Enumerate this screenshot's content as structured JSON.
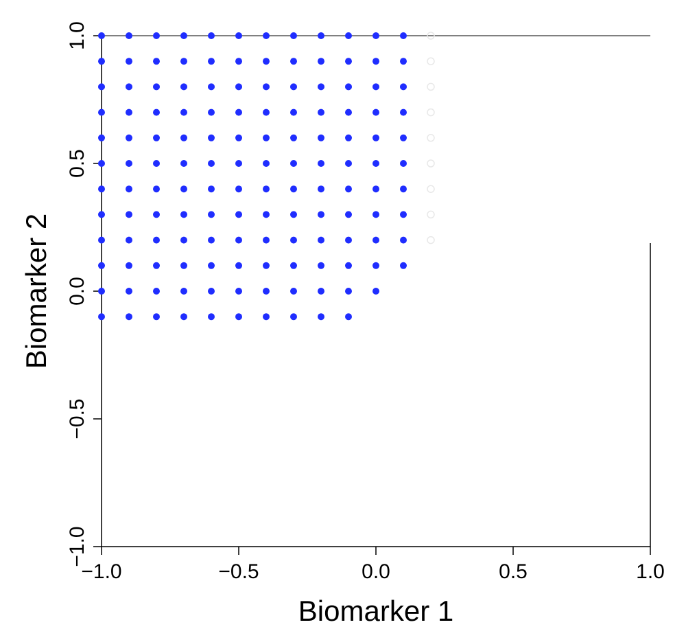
{
  "chart_data": {
    "type": "scatter",
    "title": "",
    "xlabel": "Biomarker 1",
    "ylabel": "Biomarker 2",
    "xlim": [
      -1.0,
      1.0
    ],
    "ylim": [
      -1.0,
      1.0
    ],
    "x_ticks": [
      -1.0,
      -0.5,
      0.0,
      0.5,
      1.0
    ],
    "y_ticks": [
      -1.0,
      -0.5,
      0.0,
      0.5,
      1.0
    ],
    "x_tick_labels": [
      "−1.0",
      "−0.5",
      "0.0",
      "0.5",
      "1.0"
    ],
    "y_tick_labels": [
      "−1.0",
      "−0.5",
      "0.0",
      "0.5",
      "1.0"
    ],
    "grid": false,
    "legend": "none",
    "series": [
      {
        "marker": "filled-circle",
        "color": "#1f2dff",
        "points": [
          [
            -1.0,
            1.0
          ],
          [
            -0.9,
            1.0
          ],
          [
            -0.8,
            1.0
          ],
          [
            -0.7,
            1.0
          ],
          [
            -0.6,
            1.0
          ],
          [
            -0.5,
            1.0
          ],
          [
            -0.4,
            1.0
          ],
          [
            -0.3,
            1.0
          ],
          [
            -0.2,
            1.0
          ],
          [
            -0.1,
            1.0
          ],
          [
            0.0,
            1.0
          ],
          [
            0.1,
            1.0
          ],
          [
            -1.0,
            0.9
          ],
          [
            -0.9,
            0.9
          ],
          [
            -0.8,
            0.9
          ],
          [
            -0.7,
            0.9
          ],
          [
            -0.6,
            0.9
          ],
          [
            -0.5,
            0.9
          ],
          [
            -0.4,
            0.9
          ],
          [
            -0.3,
            0.9
          ],
          [
            -0.2,
            0.9
          ],
          [
            -0.1,
            0.9
          ],
          [
            0.0,
            0.9
          ],
          [
            0.1,
            0.9
          ],
          [
            -1.0,
            0.8
          ],
          [
            -0.9,
            0.8
          ],
          [
            -0.8,
            0.8
          ],
          [
            -0.7,
            0.8
          ],
          [
            -0.6,
            0.8
          ],
          [
            -0.5,
            0.8
          ],
          [
            -0.4,
            0.8
          ],
          [
            -0.3,
            0.8
          ],
          [
            -0.2,
            0.8
          ],
          [
            -0.1,
            0.8
          ],
          [
            0.0,
            0.8
          ],
          [
            0.1,
            0.8
          ],
          [
            -1.0,
            0.7
          ],
          [
            -0.9,
            0.7
          ],
          [
            -0.8,
            0.7
          ],
          [
            -0.7,
            0.7
          ],
          [
            -0.6,
            0.7
          ],
          [
            -0.5,
            0.7
          ],
          [
            -0.4,
            0.7
          ],
          [
            -0.3,
            0.7
          ],
          [
            -0.2,
            0.7
          ],
          [
            -0.1,
            0.7
          ],
          [
            0.0,
            0.7
          ],
          [
            0.1,
            0.7
          ],
          [
            -1.0,
            0.6
          ],
          [
            -0.9,
            0.6
          ],
          [
            -0.8,
            0.6
          ],
          [
            -0.7,
            0.6
          ],
          [
            -0.6,
            0.6
          ],
          [
            -0.5,
            0.6
          ],
          [
            -0.4,
            0.6
          ],
          [
            -0.3,
            0.6
          ],
          [
            -0.2,
            0.6
          ],
          [
            -0.1,
            0.6
          ],
          [
            0.0,
            0.6
          ],
          [
            0.1,
            0.6
          ],
          [
            -1.0,
            0.5
          ],
          [
            -0.9,
            0.5
          ],
          [
            -0.8,
            0.5
          ],
          [
            -0.7,
            0.5
          ],
          [
            -0.6,
            0.5
          ],
          [
            -0.5,
            0.5
          ],
          [
            -0.4,
            0.5
          ],
          [
            -0.3,
            0.5
          ],
          [
            -0.2,
            0.5
          ],
          [
            -0.1,
            0.5
          ],
          [
            0.0,
            0.5
          ],
          [
            0.1,
            0.5
          ],
          [
            -1.0,
            0.4
          ],
          [
            -0.9,
            0.4
          ],
          [
            -0.8,
            0.4
          ],
          [
            -0.7,
            0.4
          ],
          [
            -0.6,
            0.4
          ],
          [
            -0.5,
            0.4
          ],
          [
            -0.4,
            0.4
          ],
          [
            -0.3,
            0.4
          ],
          [
            -0.2,
            0.4
          ],
          [
            -0.1,
            0.4
          ],
          [
            0.0,
            0.4
          ],
          [
            0.1,
            0.4
          ],
          [
            -1.0,
            0.3
          ],
          [
            -0.9,
            0.3
          ],
          [
            -0.8,
            0.3
          ],
          [
            -0.7,
            0.3
          ],
          [
            -0.6,
            0.3
          ],
          [
            -0.5,
            0.3
          ],
          [
            -0.4,
            0.3
          ],
          [
            -0.3,
            0.3
          ],
          [
            -0.2,
            0.3
          ],
          [
            -0.1,
            0.3
          ],
          [
            0.0,
            0.3
          ],
          [
            0.1,
            0.3
          ],
          [
            -1.0,
            0.2
          ],
          [
            -0.9,
            0.2
          ],
          [
            -0.8,
            0.2
          ],
          [
            -0.7,
            0.2
          ],
          [
            -0.6,
            0.2
          ],
          [
            -0.5,
            0.2
          ],
          [
            -0.4,
            0.2
          ],
          [
            -0.3,
            0.2
          ],
          [
            -0.2,
            0.2
          ],
          [
            -0.1,
            0.2
          ],
          [
            0.0,
            0.2
          ],
          [
            0.1,
            0.2
          ],
          [
            -1.0,
            0.1
          ],
          [
            -0.9,
            0.1
          ],
          [
            -0.8,
            0.1
          ],
          [
            -0.7,
            0.1
          ],
          [
            -0.6,
            0.1
          ],
          [
            -0.5,
            0.1
          ],
          [
            -0.4,
            0.1
          ],
          [
            -0.3,
            0.1
          ],
          [
            -0.2,
            0.1
          ],
          [
            -0.1,
            0.1
          ],
          [
            0.0,
            0.1
          ],
          [
            0.1,
            0.1
          ],
          [
            -1.0,
            0.0
          ],
          [
            -0.9,
            0.0
          ],
          [
            -0.8,
            0.0
          ],
          [
            -0.7,
            0.0
          ],
          [
            -0.6,
            0.0
          ],
          [
            -0.5,
            0.0
          ],
          [
            -0.4,
            0.0
          ],
          [
            -0.3,
            0.0
          ],
          [
            -0.2,
            0.0
          ],
          [
            -0.1,
            0.0
          ],
          [
            0.0,
            0.0
          ],
          [
            -1.0,
            -0.1
          ],
          [
            -0.9,
            -0.1
          ],
          [
            -0.8,
            -0.1
          ],
          [
            -0.7,
            -0.1
          ],
          [
            -0.6,
            -0.1
          ],
          [
            -0.5,
            -0.1
          ],
          [
            -0.4,
            -0.1
          ],
          [
            -0.3,
            -0.1
          ],
          [
            -0.2,
            -0.1
          ],
          [
            -0.1,
            -0.1
          ]
        ]
      },
      {
        "marker": "open-circle",
        "color": "#e8e8e8",
        "points": [
          [
            0.2,
            1.0
          ],
          [
            0.2,
            0.9
          ],
          [
            0.2,
            0.8
          ],
          [
            0.2,
            0.7
          ],
          [
            0.2,
            0.6
          ],
          [
            0.2,
            0.5
          ],
          [
            0.2,
            0.4
          ],
          [
            0.2,
            0.3
          ],
          [
            0.2,
            0.2
          ]
        ]
      }
    ]
  }
}
